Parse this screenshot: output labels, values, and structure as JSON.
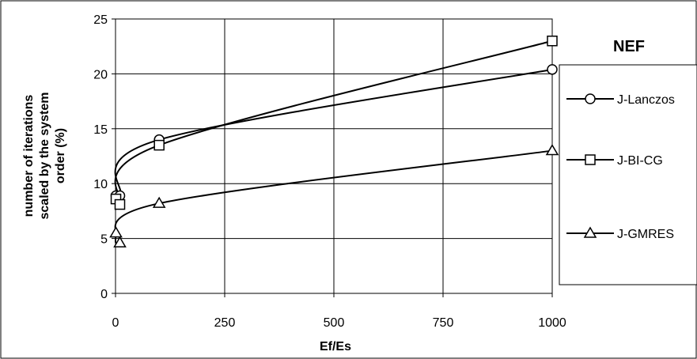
{
  "chart_data": {
    "type": "line",
    "xlabel": "Ef/Es",
    "ylabel": "number of iterations scaled by the system order (%)",
    "ylabel_lines": [
      "number of iterations",
      "scaled by the system",
      "order (%)"
    ],
    "xlim": [
      0,
      1000
    ],
    "ylim": [
      0,
      25
    ],
    "xticks": [
      0,
      250,
      500,
      750,
      1000
    ],
    "yticks": [
      0,
      5,
      10,
      15,
      20,
      25
    ],
    "grid": true,
    "legend_title": "NEF",
    "legend_position": "right",
    "x": [
      1,
      10,
      100,
      1000
    ],
    "series": [
      {
        "name": "J-Lanczos",
        "marker": "circle",
        "values": [
          8.9,
          8.9,
          14.0,
          20.4
        ]
      },
      {
        "name": "J-BI-CG",
        "marker": "square",
        "values": [
          8.6,
          8.1,
          13.5,
          23.0
        ]
      },
      {
        "name": "J-GMRES",
        "marker": "triangle",
        "values": [
          5.5,
          4.6,
          8.2,
          13.0
        ]
      }
    ]
  }
}
